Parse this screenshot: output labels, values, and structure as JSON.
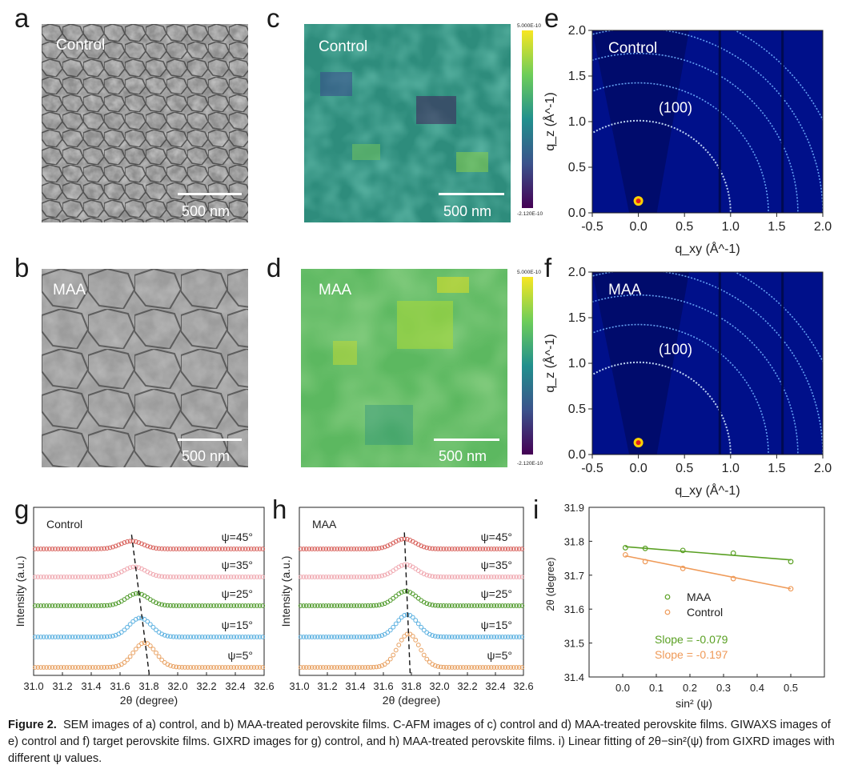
{
  "panels": {
    "a": {
      "letter": "a",
      "label": "Control",
      "scale": "500 nm"
    },
    "b": {
      "letter": "b",
      "label": "MAA",
      "scale": "500 nm"
    },
    "c": {
      "letter": "c",
      "label": "Control",
      "scale": "500 nm",
      "cbar_max": "5.000E-10",
      "cbar_min": "-2.120E-10"
    },
    "d": {
      "letter": "d",
      "label": "MAA",
      "scale": "500 nm",
      "cbar_max": "5.000E-10",
      "cbar_min": "-2.120E-10"
    },
    "e": {
      "letter": "e",
      "label": "Control",
      "peak": "(100)"
    },
    "f": {
      "letter": "f",
      "label": "MAA",
      "peak": "(100)"
    },
    "g": {
      "letter": "g",
      "label": "Control"
    },
    "h": {
      "letter": "h",
      "label": "MAA"
    },
    "i": {
      "letter": "i"
    }
  },
  "colors": {
    "psi45": "#d8605a",
    "psi35": "#f0a8b0",
    "psi25": "#4f9a2a",
    "psi15": "#5ab0e0",
    "psi5": "#e8a060",
    "maa_line": "#5aa023",
    "control_line": "#ef9a58"
  },
  "chart_data": [
    {
      "panel": "e",
      "type": "scatter",
      "xlabel": "q_xy (Å^-1)",
      "ylabel": "q_z (Å^-1)",
      "xlim": [
        -0.5,
        2.0
      ],
      "ylim": [
        0.0,
        2.0
      ],
      "xticks": [
        "-0.5",
        "0.0",
        "0.5",
        "1.0",
        "1.5",
        "2.0"
      ],
      "yticks": [
        "0.0",
        "0.5",
        "1.0",
        "1.5",
        "2.0"
      ],
      "ring_radii": [
        1.0,
        1.41,
        1.73,
        2.0,
        2.24
      ]
    },
    {
      "panel": "f",
      "type": "scatter",
      "xlabel": "q_xy (Å^-1)",
      "ylabel": "q_z (Å^-1)",
      "xlim": [
        -0.5,
        2.0
      ],
      "ylim": [
        0.0,
        2.0
      ],
      "xticks": [
        "-0.5",
        "0.0",
        "0.5",
        "1.0",
        "1.5",
        "2.0"
      ],
      "yticks": [
        "0.0",
        "0.5",
        "1.0",
        "1.5",
        "2.0"
      ],
      "ring_radii": [
        1.0,
        1.41,
        1.73,
        2.0,
        2.24
      ]
    },
    {
      "panel": "g",
      "type": "line",
      "xlabel": "2θ (degree)",
      "ylabel": "Intensity (a.u.)",
      "xlim": [
        31.0,
        32.6
      ],
      "xticks": [
        "31.0",
        "31.2",
        "31.4",
        "31.6",
        "31.8",
        "32.0",
        "32.2",
        "32.4",
        "32.6"
      ],
      "series": [
        {
          "name": "ψ=45°",
          "peak": 31.68,
          "amp": 0.35
        },
        {
          "name": "ψ=35°",
          "peak": 31.7,
          "amp": 0.45
        },
        {
          "name": "ψ=25°",
          "peak": 31.72,
          "amp": 0.55
        },
        {
          "name": "ψ=15°",
          "peak": 31.74,
          "amp": 0.85
        },
        {
          "name": "ψ=5°",
          "peak": 31.77,
          "amp": 1.1
        }
      ]
    },
    {
      "panel": "h",
      "type": "line",
      "xlabel": "2θ (degree)",
      "ylabel": "Intensity (a.u.)",
      "xlim": [
        31.0,
        32.6
      ],
      "xticks": [
        "31.0",
        "31.2",
        "31.4",
        "31.6",
        "31.8",
        "32.0",
        "32.2",
        "32.4",
        "32.6"
      ],
      "series": [
        {
          "name": "ψ=45°",
          "peak": 31.75,
          "amp": 0.45
        },
        {
          "name": "ψ=35°",
          "peak": 31.76,
          "amp": 0.55
        },
        {
          "name": "ψ=25°",
          "peak": 31.76,
          "amp": 0.65
        },
        {
          "name": "ψ=15°",
          "peak": 31.77,
          "amp": 1.0
        },
        {
          "name": "ψ=5°",
          "peak": 31.78,
          "amp": 1.5
        }
      ]
    },
    {
      "panel": "i",
      "type": "scatter",
      "xlabel": "sin² (ψ)",
      "ylabel": "2θ (degree)",
      "xlim": [
        -0.1,
        0.6
      ],
      "ylim": [
        31.4,
        31.9
      ],
      "xticks": [
        "0.0",
        "0.1",
        "0.2",
        "0.3",
        "0.4",
        "0.5"
      ],
      "yticks": [
        "31.4",
        "31.5",
        "31.6",
        "31.7",
        "31.8",
        "31.9"
      ],
      "series": [
        {
          "name": "MAA",
          "x": [
            0.008,
            0.067,
            0.179,
            0.329,
            0.5
          ],
          "y": [
            31.781,
            31.779,
            31.773,
            31.765,
            31.74
          ],
          "fit": [
            [
              0.008,
              31.784
            ],
            [
              0.5,
              31.745
            ]
          ],
          "slope_text": "Slope = -0.079"
        },
        {
          "name": "Control",
          "x": [
            0.008,
            0.067,
            0.179,
            0.329,
            0.5
          ],
          "y": [
            31.76,
            31.74,
            31.72,
            31.69,
            31.66
          ],
          "fit": [
            [
              0.008,
              31.757
            ],
            [
              0.5,
              31.66
            ]
          ],
          "slope_text": "Slope = -0.197"
        }
      ]
    }
  ],
  "caption": {
    "title": "Figure 2.",
    "text": "SEM images of a) control, and b) MAA-treated perovskite films. C-AFM images of c) control and d) MAA-treated perovskite films. GIWAXS images of e) control and f) target perovskite films. GIXRD images for g) control, and h) MAA-treated perovskite films. i) Linear fitting of 2θ−sin²(ψ) from GIXRD images with different ψ values."
  }
}
